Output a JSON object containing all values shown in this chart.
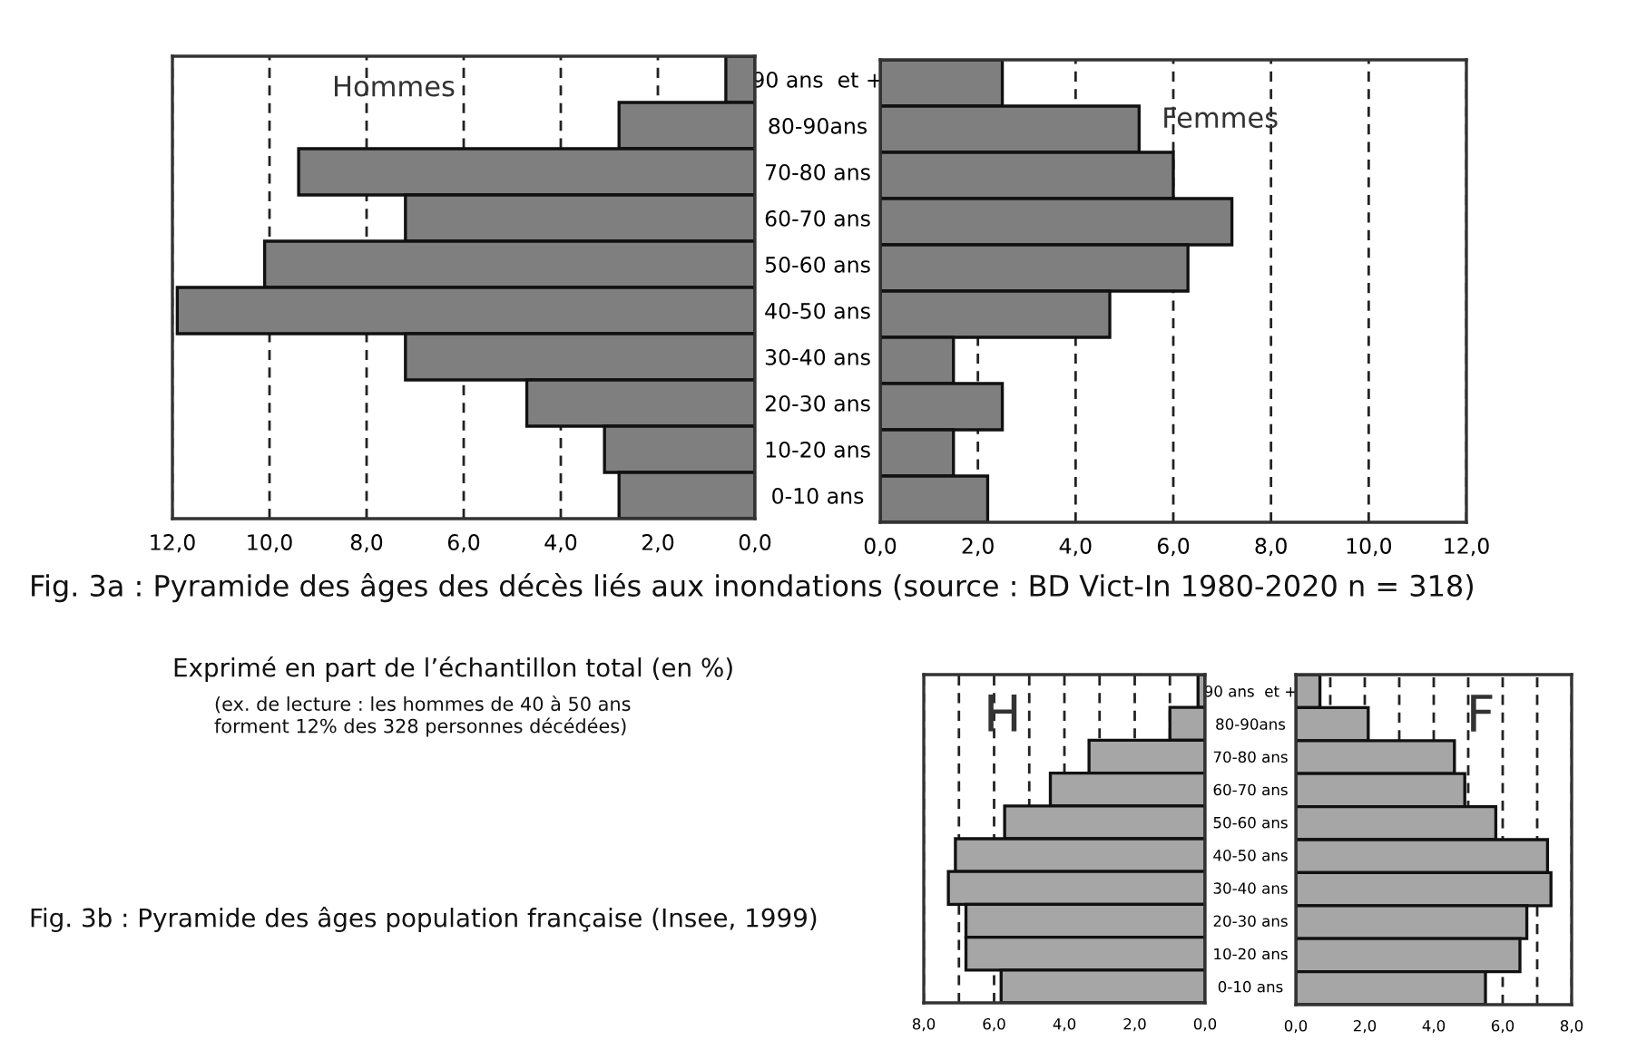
{
  "chart_data": [
    {
      "type": "bar",
      "orientation": "horizontal",
      "categories": [
        "90 ans  et +",
        "80-90ans",
        "70-80 ans",
        "60-70 ans",
        "50-60 ans",
        "40-50 ans",
        "30-40 ans",
        "20-30 ans",
        "10-20 ans",
        "0-10 ans"
      ],
      "series": [
        {
          "color": "#7f7f7f",
          "values": [
            0.6,
            2.8,
            9.4,
            7.2,
            10.1,
            11.9,
            7.2,
            4.7,
            3.1,
            2.8
          ]
        }
      ],
      "xlim": [
        12,
        0
      ],
      "xticks": [
        {
          "value": 12,
          "label": "12,0"
        },
        {
          "value": 10,
          "label": "10,0"
        },
        {
          "value": 8,
          "label": "8,0"
        },
        {
          "value": 6,
          "label": "6,0"
        },
        {
          "value": 4,
          "label": "4,0"
        },
        {
          "value": 2,
          "label": "2,0"
        },
        {
          "value": 0,
          "label": "0,0"
        }
      ],
      "grid": "x",
      "tick_labels": "xy",
      "annotations": [
        "Hommes",
        "Fig. 3a : Pyramide des âges des décès liés aux inondations (source : BD Vict-In 1980-2020 n = 318)",
        "Exprimé en part de l’échantillon total (en %)",
        "(ex. de lecture : les hommes de 40 à 50 ans\nforment 12% des 328 personnes décédées)"
      ]
    },
    {
      "type": "bar",
      "orientation": "horizontal",
      "categories": [
        null,
        null,
        null,
        null,
        null,
        null,
        null,
        null,
        null,
        null
      ],
      "series": [
        {
          "color": "#7f7f7f",
          "values": [
            2.5,
            5.3,
            6.0,
            7.2,
            6.3,
            4.7,
            1.5,
            2.5,
            1.5,
            2.2
          ]
        }
      ],
      "xlim": [
        0,
        12
      ],
      "xticks": [
        {
          "value": 0,
          "label": "0,0"
        },
        {
          "value": 2,
          "label": "2,0"
        },
        {
          "value": 4,
          "label": "4,0"
        },
        {
          "value": 6,
          "label": "6,0"
        },
        {
          "value": 8,
          "label": "8,0"
        },
        {
          "value": 10,
          "label": "10,0"
        },
        {
          "value": 12,
          "label": "12,0"
        }
      ],
      "grid": "x",
      "tick_labels": "x",
      "annotations": [
        "Femmes"
      ]
    },
    {
      "type": "bar",
      "orientation": "horizontal",
      "categories": [
        "90 ans  et +",
        "80-90ans",
        "70-80 ans",
        "60-70 ans",
        "50-60 ans",
        "40-50 ans",
        "30-40 ans",
        "20-30 ans",
        "10-20 ans",
        "0-10 ans"
      ],
      "series": [
        {
          "color": "#a6a6a6",
          "values": [
            0.2,
            1.0,
            3.3,
            4.4,
            5.7,
            7.1,
            7.3,
            6.8,
            6.8,
            5.8
          ]
        }
      ],
      "xlim": [
        8,
        0
      ],
      "xticks": [
        {
          "value": 8,
          "label": "8,0"
        },
        {
          "value": 7,
          "label": null
        },
        {
          "value": 6,
          "label": "6,0"
        },
        {
          "value": 5,
          "label": null
        },
        {
          "value": 4,
          "label": "4,0"
        },
        {
          "value": 3,
          "label": null
        },
        {
          "value": 2,
          "label": "2,0"
        },
        {
          "value": 1,
          "label": null
        },
        {
          "value": 0,
          "label": "0,0"
        }
      ],
      "grid": "x",
      "tick_labels": "xy",
      "annotations": [
        "H",
        "Fig. 3b : Pyramide des âges population française (Insee, 1999)"
      ]
    },
    {
      "type": "bar",
      "orientation": "horizontal",
      "categories": [
        null,
        null,
        null,
        null,
        null,
        null,
        null,
        null,
        null,
        null
      ],
      "series": [
        {
          "color": "#a6a6a6",
          "values": [
            0.7,
            2.1,
            4.6,
            4.9,
            5.8,
            7.3,
            7.4,
            6.7,
            6.5,
            5.5
          ]
        }
      ],
      "xlim": [
        0,
        8
      ],
      "xticks": [
        {
          "value": 0,
          "label": "0,0"
        },
        {
          "value": 1,
          "label": null
        },
        {
          "value": 2,
          "label": "2,0"
        },
        {
          "value": 3,
          "label": null
        },
        {
          "value": 4,
          "label": "4,0"
        },
        {
          "value": 5,
          "label": null
        },
        {
          "value": 6,
          "label": "6,0"
        },
        {
          "value": 7,
          "label": null
        },
        {
          "value": 8,
          "label": "8,0"
        }
      ],
      "grid": "x",
      "tick_labels": "x",
      "annotations": [
        "F"
      ]
    }
  ]
}
